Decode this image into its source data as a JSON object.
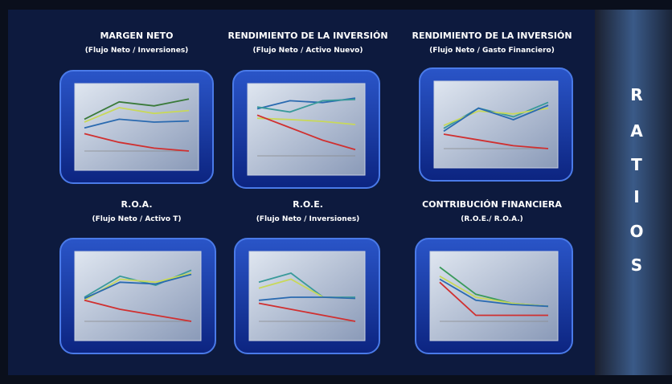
{
  "side_letters": [
    "R",
    "A",
    "T",
    "I",
    "O",
    "S"
  ],
  "ylim": [
    0,
    100
  ],
  "panels": [
    {
      "title": "MARGEN NETO",
      "subtitle": "(Flujo Neto / Inversiones)",
      "series": [
        {
          "color": "#3a7a3a",
          "values": [
            55,
            85,
            78,
            90
          ]
        },
        {
          "color": "#c8d85a",
          "values": [
            50,
            75,
            65,
            70
          ]
        },
        {
          "color": "#2a6ab0",
          "values": [
            40,
            55,
            50,
            52
          ]
        },
        {
          "color": "#d03030",
          "values": [
            30,
            15,
            5,
            0
          ]
        }
      ]
    },
    {
      "title": "RENDIMIENTO DE LA INVERSIÓN",
      "subtitle": "(Flujo Neto / Activo Nuevo)",
      "series": [
        {
          "color": "#2a6ab0",
          "values": [
            75,
            88,
            85,
            92
          ]
        },
        {
          "color": "#3a9a9a",
          "values": [
            78,
            70,
            88,
            90
          ]
        },
        {
          "color": "#c8d85a",
          "values": [
            60,
            58,
            55,
            50
          ]
        },
        {
          "color": "#d03030",
          "values": [
            65,
            45,
            25,
            10
          ]
        }
      ]
    },
    {
      "title": "RENDIMIENTO DE LA INVERSIÓN",
      "subtitle": "(Flujo Neto / Gasto Financiero)",
      "series": [
        {
          "color": "#3a9a9a",
          "values": [
            35,
            70,
            55,
            80
          ]
        },
        {
          "color": "#c8d85a",
          "values": [
            40,
            65,
            60,
            70
          ]
        },
        {
          "color": "#2a6ab0",
          "values": [
            30,
            70,
            50,
            75
          ]
        },
        {
          "color": "#d03030",
          "values": [
            25,
            15,
            5,
            0
          ]
        }
      ]
    },
    {
      "title": "R.O.A.",
      "subtitle": "(Flujo Neto / Activo T)",
      "series": [
        {
          "color": "#3a9a9a",
          "values": [
            40,
            75,
            60,
            85
          ]
        },
        {
          "color": "#c8d85a",
          "values": [
            35,
            70,
            65,
            80
          ]
        },
        {
          "color": "#2a6ab0",
          "values": [
            38,
            65,
            62,
            78
          ]
        },
        {
          "color": "#d03030",
          "values": [
            35,
            20,
            10,
            0
          ]
        }
      ]
    },
    {
      "title": "R.O.E.",
      "subtitle": "(Flujo Neto / Inversiones)",
      "series": [
        {
          "color": "#3a9a9a",
          "values": [
            65,
            80,
            40,
            40
          ]
        },
        {
          "color": "#c8d85a",
          "values": [
            55,
            70,
            40,
            38
          ]
        },
        {
          "color": "#2a6ab0",
          "values": [
            35,
            40,
            40,
            38
          ]
        },
        {
          "color": "#d03030",
          "values": [
            30,
            20,
            10,
            0
          ]
        }
      ]
    },
    {
      "title": "CONTRIBUCIÓN FINANCIERA",
      "subtitle": "(R.O.E./ R.O.A.)",
      "series": [
        {
          "color": "#3a9a5a",
          "values": [
            90,
            45,
            30,
            25
          ]
        },
        {
          "color": "#c8d85a",
          "values": [
            75,
            40,
            30,
            25
          ]
        },
        {
          "color": "#2a6ab0",
          "values": [
            70,
            35,
            28,
            25
          ]
        },
        {
          "color": "#d03030",
          "values": [
            65,
            10,
            10,
            10
          ]
        }
      ]
    }
  ]
}
